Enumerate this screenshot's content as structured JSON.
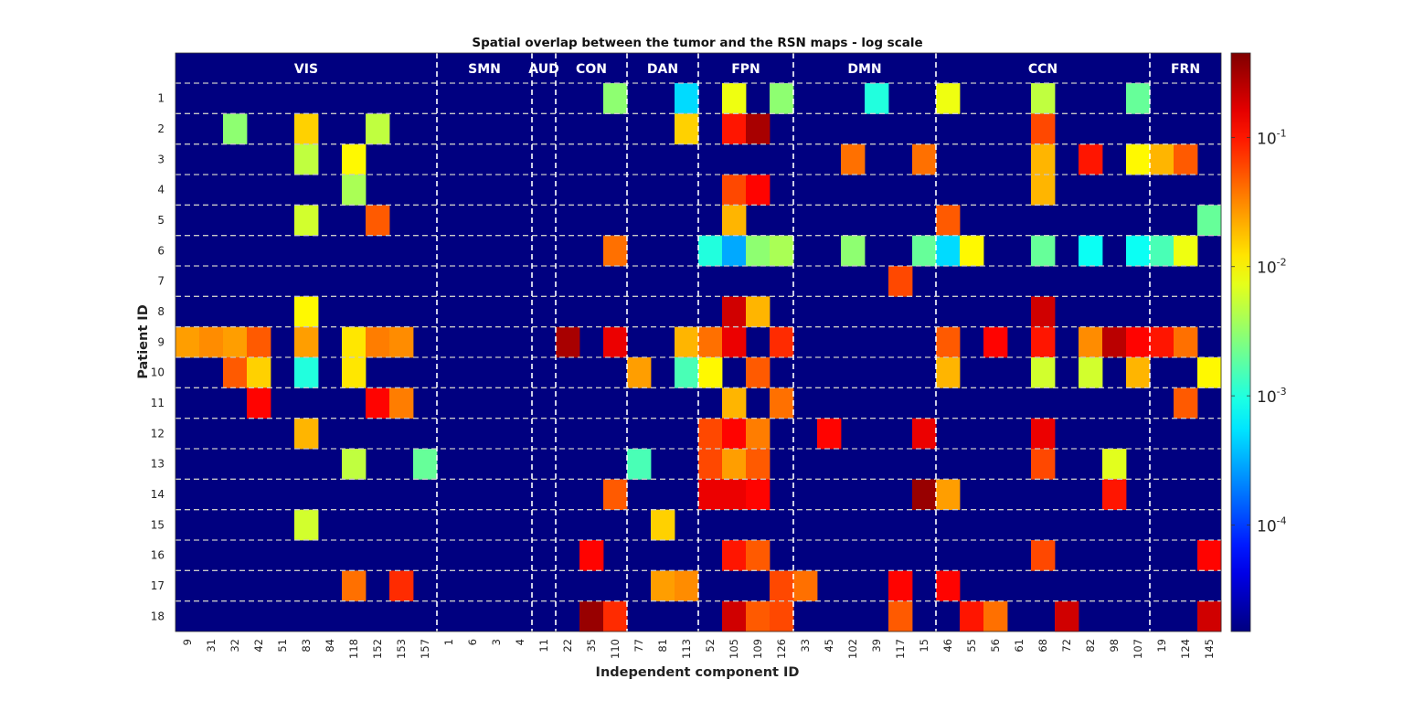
{
  "chart_data": {
    "type": "heatmap",
    "title": "Spatial overlap between the tumor and the RSN maps - log scale",
    "xlabel": "Independent component ID",
    "ylabel": "Patient ID",
    "x": [
      "9",
      "31",
      "32",
      "42",
      "51",
      "83",
      "84",
      "118",
      "152",
      "153",
      "157",
      "1",
      "6",
      "3",
      "4",
      "11",
      "22",
      "35",
      "110",
      "77",
      "81",
      "113",
      "52",
      "105",
      "109",
      "126",
      "33",
      "45",
      "102",
      "39",
      "117",
      "15",
      "46",
      "55",
      "56",
      "61",
      "68",
      "72",
      "82",
      "98",
      "107",
      "19",
      "124",
      "145"
    ],
    "y": [
      "1",
      "2",
      "3",
      "4",
      "5",
      "6",
      "7",
      "8",
      "9",
      "10",
      "11",
      "12",
      "13",
      "14",
      "15",
      "16",
      "17",
      "18"
    ],
    "networks": [
      {
        "label": "VIS",
        "start": 0,
        "end": 10
      },
      {
        "label": "SMN",
        "start": 11,
        "end": 14
      },
      {
        "label": "AUD",
        "start": 15,
        "end": 15
      },
      {
        "label": "CON",
        "start": 16,
        "end": 18
      },
      {
        "label": "DAN",
        "start": 19,
        "end": 21
      },
      {
        "label": "FPN",
        "start": 22,
        "end": 25
      },
      {
        "label": "DMN",
        "start": 26,
        "end": 31
      },
      {
        "label": "CCN",
        "start": 32,
        "end": 40
      },
      {
        "label": "FRN",
        "start": 41,
        "end": 43
      }
    ],
    "background_value": 1.5e-05,
    "color_scale": {
      "type": "log",
      "colormap": "jet",
      "min": 1.5e-05,
      "max": 0.45,
      "ticks": [
        {
          "value": 0.0001,
          "base": "10",
          "exp": "-4"
        },
        {
          "value": 0.001,
          "base": "10",
          "exp": "-3"
        },
        {
          "value": 0.01,
          "base": "10",
          "exp": "-2"
        },
        {
          "value": 0.1,
          "base": "10",
          "exp": "-1"
        }
      ]
    },
    "cells": [
      {
        "patient": 1,
        "ic": 18,
        "value": 0.003
      },
      {
        "patient": 1,
        "ic": 21,
        "value": 0.0005
      },
      {
        "patient": 1,
        "ic": 23,
        "value": 0.008
      },
      {
        "patient": 1,
        "ic": 25,
        "value": 0.003
      },
      {
        "patient": 1,
        "ic": 29,
        "value": 0.001
      },
      {
        "patient": 1,
        "ic": 32,
        "value": 0.008
      },
      {
        "patient": 1,
        "ic": 36,
        "value": 0.005
      },
      {
        "patient": 1,
        "ic": 40,
        "value": 0.002
      },
      {
        "patient": 2,
        "ic": 2,
        "value": 0.003
      },
      {
        "patient": 2,
        "ic": 5,
        "value": 0.015
      },
      {
        "patient": 2,
        "ic": 8,
        "value": 0.005
      },
      {
        "patient": 2,
        "ic": 21,
        "value": 0.015
      },
      {
        "patient": 2,
        "ic": 23,
        "value": 0.1
      },
      {
        "patient": 2,
        "ic": 24,
        "value": 0.3
      },
      {
        "patient": 2,
        "ic": 36,
        "value": 0.06
      },
      {
        "patient": 3,
        "ic": 5,
        "value": 0.005
      },
      {
        "patient": 3,
        "ic": 7,
        "value": 0.01
      },
      {
        "patient": 3,
        "ic": 28,
        "value": 0.04
      },
      {
        "patient": 3,
        "ic": 31,
        "value": 0.04
      },
      {
        "patient": 3,
        "ic": 36,
        "value": 0.02
      },
      {
        "patient": 3,
        "ic": 38,
        "value": 0.1
      },
      {
        "patient": 3,
        "ic": 40,
        "value": 0.01
      },
      {
        "patient": 3,
        "ic": 41,
        "value": 0.02
      },
      {
        "patient": 3,
        "ic": 42,
        "value": 0.05
      },
      {
        "patient": 4,
        "ic": 7,
        "value": 0.004
      },
      {
        "patient": 4,
        "ic": 23,
        "value": 0.06
      },
      {
        "patient": 4,
        "ic": 24,
        "value": 0.12
      },
      {
        "patient": 4,
        "ic": 36,
        "value": 0.02
      },
      {
        "patient": 5,
        "ic": 5,
        "value": 0.006
      },
      {
        "patient": 5,
        "ic": 8,
        "value": 0.05
      },
      {
        "patient": 5,
        "ic": 23,
        "value": 0.02
      },
      {
        "patient": 5,
        "ic": 32,
        "value": 0.05
      },
      {
        "patient": 5,
        "ic": 43,
        "value": 0.002
      },
      {
        "patient": 6,
        "ic": 18,
        "value": 0.04
      },
      {
        "patient": 6,
        "ic": 22,
        "value": 0.001
      },
      {
        "patient": 6,
        "ic": 23,
        "value": 0.0003
      },
      {
        "patient": 6,
        "ic": 24,
        "value": 0.003
      },
      {
        "patient": 6,
        "ic": 25,
        "value": 0.004
      },
      {
        "patient": 6,
        "ic": 28,
        "value": 0.003
      },
      {
        "patient": 6,
        "ic": 31,
        "value": 0.002
      },
      {
        "patient": 6,
        "ic": 32,
        "value": 0.0005
      },
      {
        "patient": 6,
        "ic": 33,
        "value": 0.01
      },
      {
        "patient": 6,
        "ic": 36,
        "value": 0.002
      },
      {
        "patient": 6,
        "ic": 38,
        "value": 0.0008
      },
      {
        "patient": 6,
        "ic": 40,
        "value": 0.0008
      },
      {
        "patient": 6,
        "ic": 41,
        "value": 0.0015
      },
      {
        "patient": 6,
        "ic": 42,
        "value": 0.008
      },
      {
        "patient": 7,
        "ic": 30,
        "value": 0.06
      },
      {
        "patient": 8,
        "ic": 5,
        "value": 0.01
      },
      {
        "patient": 8,
        "ic": 23,
        "value": 0.2
      },
      {
        "patient": 8,
        "ic": 24,
        "value": 0.02
      },
      {
        "patient": 8,
        "ic": 36,
        "value": 0.2
      },
      {
        "patient": 9,
        "ic": 0,
        "value": 0.025
      },
      {
        "patient": 9,
        "ic": 1,
        "value": 0.03
      },
      {
        "patient": 9,
        "ic": 2,
        "value": 0.025
      },
      {
        "patient": 9,
        "ic": 3,
        "value": 0.05
      },
      {
        "patient": 9,
        "ic": 5,
        "value": 0.025
      },
      {
        "patient": 9,
        "ic": 7,
        "value": 0.012
      },
      {
        "patient": 9,
        "ic": 8,
        "value": 0.035
      },
      {
        "patient": 9,
        "ic": 9,
        "value": 0.03
      },
      {
        "patient": 9,
        "ic": 16,
        "value": 0.3
      },
      {
        "patient": 9,
        "ic": 18,
        "value": 0.15
      },
      {
        "patient": 9,
        "ic": 21,
        "value": 0.02
      },
      {
        "patient": 9,
        "ic": 22,
        "value": 0.04
      },
      {
        "patient": 9,
        "ic": 23,
        "value": 0.15
      },
      {
        "patient": 9,
        "ic": 25,
        "value": 0.08
      },
      {
        "patient": 9,
        "ic": 32,
        "value": 0.05
      },
      {
        "patient": 9,
        "ic": 34,
        "value": 0.12
      },
      {
        "patient": 9,
        "ic": 36,
        "value": 0.1
      },
      {
        "patient": 9,
        "ic": 38,
        "value": 0.03
      },
      {
        "patient": 9,
        "ic": 39,
        "value": 0.25
      },
      {
        "patient": 9,
        "ic": 40,
        "value": 0.12
      },
      {
        "patient": 9,
        "ic": 41,
        "value": 0.1
      },
      {
        "patient": 9,
        "ic": 42,
        "value": 0.04
      },
      {
        "patient": 10,
        "ic": 2,
        "value": 0.05
      },
      {
        "patient": 10,
        "ic": 3,
        "value": 0.015
      },
      {
        "patient": 10,
        "ic": 5,
        "value": 0.001
      },
      {
        "patient": 10,
        "ic": 7,
        "value": 0.012
      },
      {
        "patient": 10,
        "ic": 19,
        "value": 0.025
      },
      {
        "patient": 10,
        "ic": 21,
        "value": 0.0015
      },
      {
        "patient": 10,
        "ic": 22,
        "value": 0.01
      },
      {
        "patient": 10,
        "ic": 24,
        "value": 0.05
      },
      {
        "patient": 10,
        "ic": 32,
        "value": 0.02
      },
      {
        "patient": 10,
        "ic": 36,
        "value": 0.006
      },
      {
        "patient": 10,
        "ic": 38,
        "value": 0.006
      },
      {
        "patient": 10,
        "ic": 40,
        "value": 0.02
      },
      {
        "patient": 10,
        "ic": 43,
        "value": 0.01
      },
      {
        "patient": 11,
        "ic": 3,
        "value": 0.12
      },
      {
        "patient": 11,
        "ic": 8,
        "value": 0.12
      },
      {
        "patient": 11,
        "ic": 9,
        "value": 0.035
      },
      {
        "patient": 11,
        "ic": 23,
        "value": 0.02
      },
      {
        "patient": 11,
        "ic": 25,
        "value": 0.04
      },
      {
        "patient": 11,
        "ic": 42,
        "value": 0.05
      },
      {
        "patient": 12,
        "ic": 5,
        "value": 0.02
      },
      {
        "patient": 12,
        "ic": 22,
        "value": 0.06
      },
      {
        "patient": 12,
        "ic": 23,
        "value": 0.12
      },
      {
        "patient": 12,
        "ic": 24,
        "value": 0.035
      },
      {
        "patient": 12,
        "ic": 27,
        "value": 0.12
      },
      {
        "patient": 12,
        "ic": 31,
        "value": 0.15
      },
      {
        "patient": 12,
        "ic": 36,
        "value": 0.15
      },
      {
        "patient": 13,
        "ic": 7,
        "value": 0.005
      },
      {
        "patient": 13,
        "ic": 10,
        "value": 0.002
      },
      {
        "patient": 13,
        "ic": 19,
        "value": 0.0015
      },
      {
        "patient": 13,
        "ic": 22,
        "value": 0.06
      },
      {
        "patient": 13,
        "ic": 23,
        "value": 0.025
      },
      {
        "patient": 13,
        "ic": 24,
        "value": 0.05
      },
      {
        "patient": 13,
        "ic": 36,
        "value": 0.06
      },
      {
        "patient": 13,
        "ic": 39,
        "value": 0.007
      },
      {
        "patient": 14,
        "ic": 18,
        "value": 0.05
      },
      {
        "patient": 14,
        "ic": 22,
        "value": 0.15
      },
      {
        "patient": 14,
        "ic": 23,
        "value": 0.15
      },
      {
        "patient": 14,
        "ic": 24,
        "value": 0.12
      },
      {
        "patient": 14,
        "ic": 31,
        "value": 0.35
      },
      {
        "patient": 14,
        "ic": 32,
        "value": 0.025
      },
      {
        "patient": 14,
        "ic": 39,
        "value": 0.1
      },
      {
        "patient": 15,
        "ic": 5,
        "value": 0.006
      },
      {
        "patient": 15,
        "ic": 20,
        "value": 0.015
      },
      {
        "patient": 16,
        "ic": 17,
        "value": 0.12
      },
      {
        "patient": 16,
        "ic": 23,
        "value": 0.1
      },
      {
        "patient": 16,
        "ic": 24,
        "value": 0.05
      },
      {
        "patient": 16,
        "ic": 36,
        "value": 0.06
      },
      {
        "patient": 16,
        "ic": 43,
        "value": 0.12
      },
      {
        "patient": 17,
        "ic": 7,
        "value": 0.04
      },
      {
        "patient": 17,
        "ic": 9,
        "value": 0.08
      },
      {
        "patient": 17,
        "ic": 20,
        "value": 0.025
      },
      {
        "patient": 17,
        "ic": 21,
        "value": 0.03
      },
      {
        "patient": 17,
        "ic": 25,
        "value": 0.06
      },
      {
        "patient": 17,
        "ic": 26,
        "value": 0.04
      },
      {
        "patient": 17,
        "ic": 30,
        "value": 0.12
      },
      {
        "patient": 17,
        "ic": 32,
        "value": 0.12
      },
      {
        "patient": 18,
        "ic": 17,
        "value": 0.35
      },
      {
        "patient": 18,
        "ic": 18,
        "value": 0.08
      },
      {
        "patient": 18,
        "ic": 23,
        "value": 0.2
      },
      {
        "patient": 18,
        "ic": 24,
        "value": 0.05
      },
      {
        "patient": 18,
        "ic": 25,
        "value": 0.06
      },
      {
        "patient": 18,
        "ic": 30,
        "value": 0.05
      },
      {
        "patient": 18,
        "ic": 33,
        "value": 0.1
      },
      {
        "patient": 18,
        "ic": 34,
        "value": 0.04
      },
      {
        "patient": 18,
        "ic": 37,
        "value": 0.2
      },
      {
        "patient": 18,
        "ic": 43,
        "value": 0.2
      }
    ]
  }
}
